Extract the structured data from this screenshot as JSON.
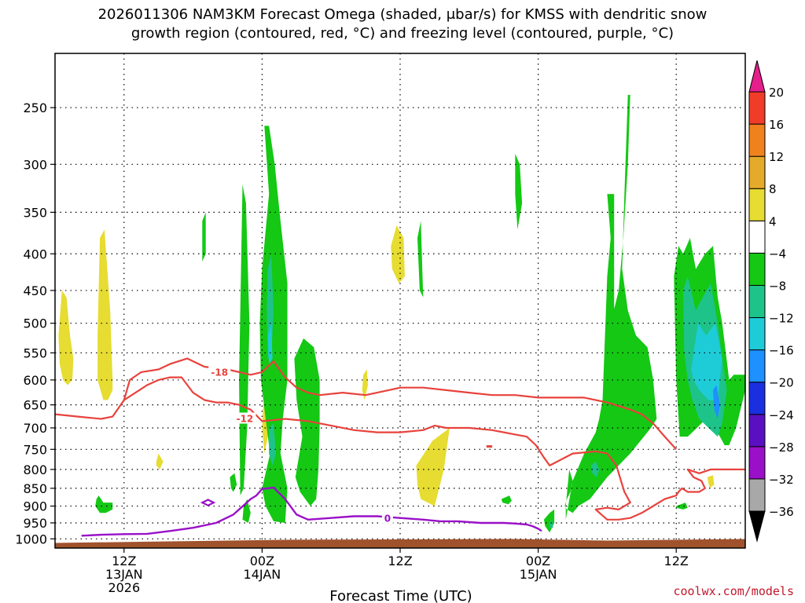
{
  "chart_data": {
    "type": "heatmap",
    "title_line1": "2026011306 NAM3KM Forecast Omega (shaded, μbar/s) for KMSS with dendritic snow",
    "title_line2": "growth region (contoured, red, °C) and freezing level (contoured, purple, °C)",
    "xlabel": "Forecast Time (UTC)",
    "credit": "coolwx.com/models",
    "x_unit": "hours since 2026-01-13 06Z",
    "xlim": [
      0,
      60
    ],
    "x_ticks": [
      {
        "x": 6,
        "lines": [
          "12Z",
          "13JAN",
          "2026"
        ]
      },
      {
        "x": 18,
        "lines": [
          "00Z",
          "14JAN"
        ]
      },
      {
        "x": 30,
        "lines": [
          "12Z"
        ]
      },
      {
        "x": 42,
        "lines": [
          "00Z",
          "15JAN"
        ]
      },
      {
        "x": 54,
        "lines": [
          "12Z"
        ]
      }
    ],
    "y_scale": "log",
    "ylim": [
      1030,
      210
    ],
    "y_ticks": [
      250,
      300,
      350,
      400,
      450,
      500,
      550,
      600,
      650,
      700,
      750,
      800,
      850,
      900,
      950,
      1000
    ],
    "grid": "dotted",
    "colorbar": {
      "levels": [
        -36,
        -32,
        -28,
        -24,
        -20,
        -16,
        -12,
        -8,
        -4,
        4,
        8,
        12,
        16,
        20
      ],
      "colors": [
        "#000000",
        "#a8a8a8",
        "#9a10c8",
        "#5a10c0",
        "#1a30e0",
        "#1e90ff",
        "#1eccd8",
        "#1ec38a",
        "#14c814",
        "#ffffff",
        "#e6dc32",
        "#e6aa2a",
        "#f0821e",
        "#f03c28",
        "#e61e8c"
      ]
    },
    "omega_regions": [
      {
        "level": "4",
        "x": [
          0.3,
          0.6,
          1.0,
          1.3,
          1.6,
          1.5,
          1.1,
          0.7,
          0.4
        ],
        "p": [
          520,
          450,
          460,
          520,
          560,
          600,
          610,
          600,
          570
        ]
      },
      {
        "level": "4",
        "x": [
          3.7,
          3.9,
          4.3,
          4.8,
          5.0,
          5.0,
          4.6,
          4.2,
          3.7
        ],
        "p": [
          520,
          380,
          370,
          480,
          600,
          620,
          640,
          640,
          600
        ]
      },
      {
        "level": "4",
        "x": [
          8.8,
          9.0,
          9.4,
          9.1,
          8.8
        ],
        "p": [
          780,
          760,
          780,
          800,
          790
        ]
      },
      {
        "level": "4",
        "x": [
          29.2,
          29.7,
          30.3,
          30.4,
          29.9,
          29.3
        ],
        "p": [
          390,
          365,
          380,
          430,
          440,
          420
        ]
      },
      {
        "level": "4",
        "x": [
          26.8,
          27.1,
          27.2,
          26.9,
          26.7
        ],
        "p": [
          590,
          580,
          610,
          640,
          620
        ]
      },
      {
        "level": "4",
        "x": [
          18.1,
          18.4,
          18.5,
          18.2,
          18.0
        ],
        "p": [
          650,
          640,
          720,
          760,
          700
        ]
      },
      {
        "level": "4",
        "x": [
          19.8,
          20.0,
          19.9,
          19.7
        ],
        "p": [
          400,
          410,
          440,
          430
        ]
      },
      {
        "level": "4",
        "x": [
          31.4,
          32.8,
          34.3,
          33.8,
          33.0,
          31.8,
          31.5
        ],
        "p": [
          790,
          730,
          700,
          800,
          900,
          880,
          840
        ]
      },
      {
        "level": "4",
        "x": [
          56.7,
          57.2,
          57.3,
          56.9
        ],
        "p": [
          820,
          815,
          840,
          850
        ]
      },
      {
        "level": "-4",
        "x": [
          18.2,
          18.6,
          19.1,
          19.6,
          20.2,
          20.2,
          19.8,
          19.6,
          20.2,
          20.0,
          19.0,
          18.3,
          18.0,
          18.7,
          18.4,
          17.9,
          17.8,
          18.0,
          18.6
        ],
        "p": [
          265,
          265,
          300,
          360,
          440,
          600,
          680,
          760,
          850,
          950,
          945,
          900,
          850,
          760,
          700,
          600,
          500,
          420,
          330
        ]
      },
      {
        "level": "-4",
        "x": [
          16.3,
          16.6,
          16.9,
          16.7,
          16.4,
          16.1,
          16.0
        ],
        "p": [
          320,
          340,
          500,
          700,
          850,
          870,
          600
        ]
      },
      {
        "level": "-4",
        "x": [
          16.4,
          16.7,
          17.0,
          16.8,
          16.3
        ],
        "p": [
          900,
          880,
          920,
          950,
          940
        ]
      },
      {
        "level": "-4",
        "x": [
          15.2,
          15.6,
          15.8,
          15.5,
          15.3
        ],
        "p": [
          820,
          810,
          840,
          860,
          850
        ]
      },
      {
        "level": "-4",
        "x": [
          12.8,
          13.1,
          13.1,
          12.8,
          12.8
        ],
        "p": [
          360,
          350,
          400,
          410,
          390
        ]
      },
      {
        "level": "-4",
        "x": [
          20.8,
          21.6,
          22.5,
          23.0,
          23.0,
          22.9,
          22.7,
          22.2,
          21.3,
          20.9,
          21.5,
          21.0
        ],
        "p": [
          560,
          525,
          540,
          600,
          700,
          800,
          880,
          900,
          860,
          820,
          720,
          640
        ]
      },
      {
        "level": "-4",
        "x": [
          31.5,
          31.8,
          32.0,
          31.7
        ],
        "p": [
          380,
          360,
          460,
          450
        ]
      },
      {
        "level": "-4",
        "x": [
          40.0,
          40.4,
          40.6,
          40.2,
          40.0
        ],
        "p": [
          290,
          300,
          340,
          370,
          330
        ]
      },
      {
        "level": "-4",
        "x": [
          38.8,
          39.5,
          39.7,
          39.4,
          38.9
        ],
        "p": [
          880,
          870,
          885,
          895,
          890
        ]
      },
      {
        "level": "-4",
        "x": [
          43.0,
          43.4,
          43.4,
          43.0,
          42.6,
          42.5
        ],
        "p": [
          920,
          910,
          950,
          980,
          960,
          940
        ]
      },
      {
        "level": "-4",
        "x": [
          3.6,
          3.8,
          4.2,
          5.0,
          5.0,
          4.4,
          3.9,
          3.5
        ],
        "p": [
          880,
          870,
          890,
          890,
          910,
          920,
          920,
          900
        ]
      },
      {
        "level": "-4",
        "x": [
          54.0,
          54.8,
          55.0,
          54.6,
          54.0
        ],
        "p": [
          900,
          890,
          905,
          910,
          905
        ]
      },
      {
        "level": "-4",
        "x": [
          44.4,
          45.0,
          46.0,
          47.0,
          47.3,
          47.6,
          48.0,
          48.3,
          48.0,
          48.6,
          48.6,
          48.3,
          49.0,
          49.4,
          49.8,
          50.0,
          49.8,
          49.5,
          49.3,
          49.8,
          50.5,
          51.5,
          52.0,
          52.3,
          51.8,
          50.0,
          48.0,
          46.5,
          45.5,
          45.0,
          44.5,
          44.3,
          44.5,
          44.8,
          45.0,
          44.7,
          44.4
        ],
        "p": [
          940,
          830,
          760,
          710,
          680,
          640,
          430,
          380,
          330,
          330,
          480,
          500,
          450,
          380,
          300,
          240,
          240,
          330,
          420,
          480,
          520,
          540,
          600,
          680,
          700,
          760,
          820,
          880,
          900,
          920,
          910,
          900,
          880,
          860,
          830,
          800,
          900
        ]
      },
      {
        "level": "-4",
        "x": [
          53.8,
          54.2,
          54.6,
          55.2,
          55.7,
          56.5,
          57.2,
          57.6,
          58.0,
          58.6,
          59.0,
          60.0,
          60.0,
          59.2,
          58.6,
          58.2,
          57.8,
          57.3,
          56.6,
          55.8,
          55.0,
          54.3,
          54.0
        ],
        "p": [
          430,
          390,
          400,
          380,
          420,
          400,
          390,
          460,
          500,
          600,
          590,
          590,
          620,
          700,
          740,
          740,
          720,
          700,
          680,
          700,
          720,
          720,
          600
        ]
      },
      {
        "level": "-8",
        "x": [
          18.5,
          18.8,
          19.0,
          18.8,
          18.5,
          18.4
        ],
        "p": [
          420,
          400,
          480,
          560,
          560,
          480
        ]
      },
      {
        "level": "-8",
        "x": [
          18.6,
          19.0,
          19.2,
          18.9,
          18.6
        ],
        "p": [
          700,
          690,
          760,
          790,
          760
        ]
      },
      {
        "level": "-8",
        "x": [
          54.6,
          55.0,
          55.7,
          56.3,
          57.0,
          57.6,
          58.0,
          58.4,
          58.0,
          57.6,
          56.8,
          56.0,
          55.4,
          55.0,
          54.7
        ],
        "p": [
          450,
          430,
          480,
          460,
          440,
          500,
          560,
          620,
          690,
          720,
          700,
          680,
          640,
          600,
          550
        ]
      },
      {
        "level": "-8",
        "x": [
          46.6,
          47.0,
          47.3,
          47.1,
          46.7
        ],
        "p": [
          790,
          780,
          800,
          820,
          810
        ]
      },
      {
        "level": "-8",
        "x": [
          43.0,
          43.2,
          43.3,
          43.0
        ],
        "p": [
          950,
          940,
          965,
          965
        ]
      },
      {
        "level": "-12",
        "x": [
          18.5,
          18.8,
          18.9,
          18.6
        ],
        "p": [
          520,
          500,
          560,
          570
        ]
      },
      {
        "level": "-12",
        "x": [
          55.3,
          55.9,
          56.6,
          57.4,
          58.0,
          57.6,
          56.8,
          56.0,
          55.5
        ],
        "p": [
          580,
          500,
          520,
          500,
          560,
          640,
          640,
          620,
          600
        ]
      },
      {
        "level": "-16",
        "x": [
          57.2,
          57.5,
          57.8,
          57.6,
          57.3
        ],
        "p": [
          620,
          610,
          650,
          680,
          660
        ]
      }
    ],
    "dgz_contours": [
      {
        "label": "-18",
        "label_x": 14.3,
        "label_p": 586,
        "x": [
          6.0,
          6.5,
          7.5,
          9.0,
          10.0,
          11.5,
          13.0,
          15.0,
          17.0,
          18.0,
          19.0,
          20.0,
          21.0,
          22.0,
          23.0,
          25.0,
          27.0,
          29.0,
          30.0,
          32.0,
          34.0,
          36.0,
          38.0,
          40.0,
          42.0,
          44.0,
          46.0,
          48.0,
          50.0,
          51.0,
          52.0,
          53.0,
          54.0
        ],
        "p": [
          640,
          600,
          585,
          580,
          570,
          560,
          575,
          580,
          590,
          585,
          565,
          595,
          615,
          625,
          630,
          625,
          630,
          620,
          615,
          615,
          620,
          625,
          630,
          630,
          635,
          635,
          635,
          645,
          660,
          670,
          690,
          720,
          750
        ]
      },
      {
        "label": "-12",
        "label_x": 16.5,
        "label_p": 680,
        "x": [
          0.0,
          2.0,
          4.0,
          5.0,
          6.0,
          7.0,
          8.0,
          9.0,
          10.0,
          11.0,
          12.0,
          13.0,
          14.0,
          15.0,
          16.0,
          17.0,
          18.0,
          20.0,
          22.0,
          24.0,
          26.0,
          28.0,
          30.0,
          32.0,
          33.0,
          34.0,
          36.0,
          38.0,
          40.0,
          41.0,
          41.8,
          42.5,
          43.0,
          45.0,
          47.0,
          48.0,
          48.8,
          49.2,
          49.5,
          50.0,
          49.0,
          48.0,
          47.0,
          47.5,
          48.0,
          49.0,
          50.0,
          51.0,
          52.0,
          53.0,
          54.0,
          54.2,
          54.5,
          55.0,
          56.0,
          56.5,
          56.2,
          55.5,
          55.0,
          56.0,
          57.0,
          58.0,
          59.0,
          60.0
        ],
        "p": [
          670,
          675,
          680,
          675,
          640,
          625,
          610,
          600,
          595,
          595,
          625,
          640,
          645,
          645,
          650,
          660,
          685,
          680,
          685,
          695,
          705,
          710,
          710,
          705,
          695,
          700,
          700,
          705,
          715,
          720,
          740,
          770,
          790,
          760,
          755,
          760,
          790,
          830,
          860,
          890,
          910,
          905,
          910,
          925,
          940,
          940,
          935,
          920,
          900,
          880,
          870,
          860,
          850,
          860,
          860,
          850,
          830,
          820,
          800,
          810,
          800,
          800,
          800,
          800
        ]
      }
    ],
    "freezing_contour": {
      "label": "0",
      "label_x": 28.9,
      "label_p": 937,
      "x": [
        2.3,
        4.0,
        6.0,
        8.0,
        10.0,
        12.0,
        14.0,
        15.5,
        16.5,
        17.0,
        17.5,
        18.0,
        19.0,
        20.0,
        21.0,
        22.0,
        24.0,
        26.0,
        28.0,
        30.0,
        32.0,
        33.5,
        35.0,
        37.0,
        38.0,
        39.0,
        40.0,
        41.0,
        41.5,
        42.0,
        42.3
      ],
      "p": [
        990,
        987,
        985,
        984,
        975,
        965,
        950,
        925,
        895,
        880,
        870,
        852,
        848,
        880,
        925,
        940,
        935,
        930,
        930,
        935,
        940,
        945,
        945,
        950,
        950,
        950,
        952,
        955,
        960,
        968,
        975
      ]
    },
    "freezing_small": {
      "x": [
        12.8,
        13.3,
        13.8,
        13.3,
        12.8
      ],
      "p": [
        890,
        882,
        890,
        898,
        890
      ]
    },
    "dgz_small": {
      "x": [
        37.5,
        38.0
      ],
      "p": [
        743,
        743
      ]
    },
    "terrain_p_top": 1003
  }
}
